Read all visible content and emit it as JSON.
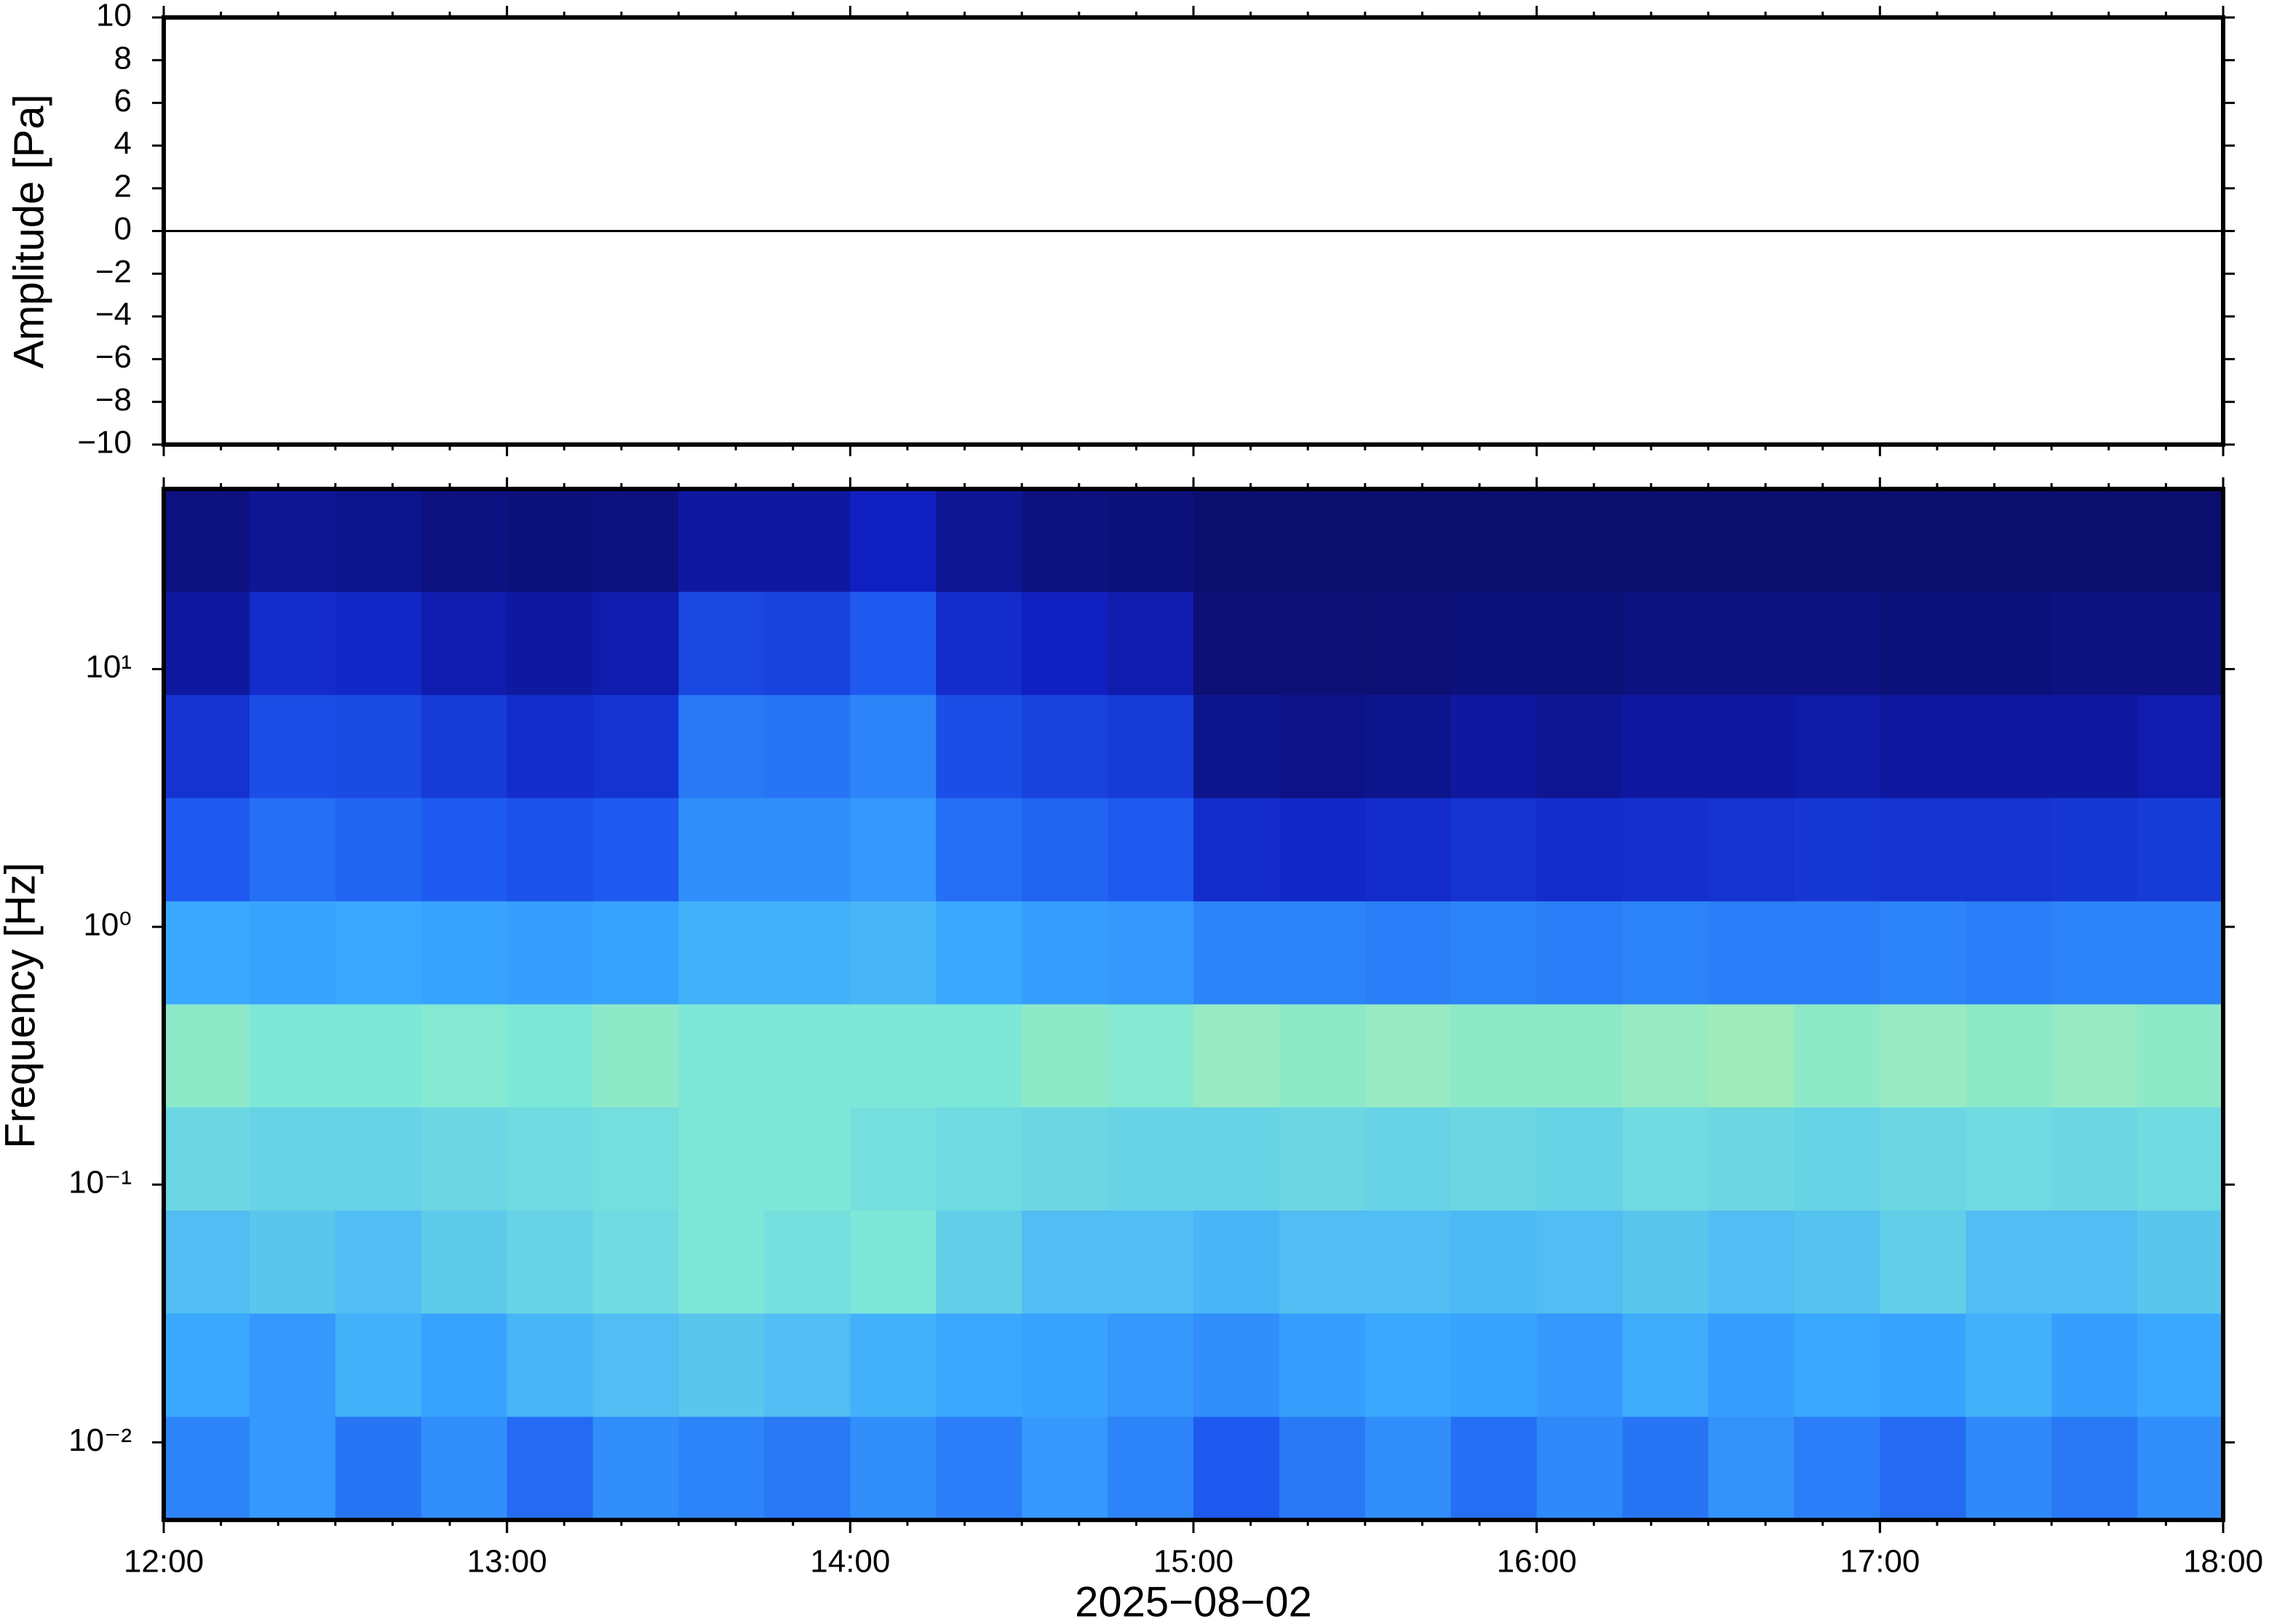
{
  "chart_data": [
    {
      "type": "line",
      "ylabel": "Amplitude [Pa]",
      "x": [
        12,
        13,
        14,
        15,
        16,
        17,
        18
      ],
      "values": [
        0,
        0,
        0,
        0,
        0,
        0,
        0
      ],
      "color": "#000000",
      "xlim": [
        12,
        18
      ],
      "ylim": [
        -10,
        10
      ],
      "yticks": [
        {
          "value": -10,
          "label": "−10"
        },
        {
          "value": -8,
          "label": "−8"
        },
        {
          "value": -6,
          "label": "−6"
        },
        {
          "value": -4,
          "label": "−4"
        },
        {
          "value": -2,
          "label": "−2"
        },
        0,
        2,
        4,
        6,
        8,
        10
      ]
    },
    {
      "type": "heatmap",
      "ylabel": "Frequency [Hz]",
      "xlabel": "2025−08−02",
      "xlim": [
        12,
        18
      ],
      "xticks": [
        {
          "value": 12,
          "label": "12:00"
        },
        {
          "value": 13,
          "label": "13:00"
        },
        {
          "value": 14,
          "label": "14:00"
        },
        {
          "value": 15,
          "label": "15:00"
        },
        {
          "value": 16,
          "label": "16:00"
        },
        {
          "value": 17,
          "label": "17:00"
        },
        {
          "value": 18,
          "label": "18:00"
        }
      ],
      "yscale": "log",
      "ylim": [
        0.005,
        50
      ],
      "yticks": [
        {
          "value": 0.01,
          "label": "10⁻²"
        },
        {
          "value": 0.1,
          "label": "10⁻¹"
        },
        {
          "value": 1,
          "label": "10⁰"
        },
        {
          "value": 10,
          "label": "10¹"
        }
      ],
      "time_bins": [
        12,
        12.25,
        12.5,
        12.75,
        13,
        13.25,
        13.5,
        13.75,
        14,
        14.25,
        14.5,
        14.75,
        15,
        15.25,
        15.5,
        15.75,
        16,
        16.25,
        16.5,
        16.75,
        17,
        17.25,
        17.5,
        17.75,
        18
      ],
      "freq_bins": [
        0.005,
        0.0126,
        0.0317,
        0.0796,
        0.2,
        0.502,
        1.26,
        3.17,
        7.96,
        20,
        50
      ],
      "z": [
        [
          0.38,
          0.42,
          0.35,
          0.4,
          0.33,
          0.4,
          0.38,
          0.36,
          0.4,
          0.37,
          0.42,
          0.38,
          0.3,
          0.36,
          0.4,
          0.34,
          0.39,
          0.35,
          0.41,
          0.37,
          0.33,
          0.39,
          0.36,
          0.4
        ],
        [
          0.45,
          0.42,
          0.47,
          0.44,
          0.48,
          0.5,
          0.52,
          0.5,
          0.47,
          0.45,
          0.44,
          0.42,
          0.4,
          0.43,
          0.45,
          0.44,
          0.42,
          0.46,
          0.43,
          0.45,
          0.44,
          0.47,
          0.43,
          0.45
        ],
        [
          0.5,
          0.52,
          0.5,
          0.53,
          0.55,
          0.57,
          0.6,
          0.58,
          0.6,
          0.54,
          0.5,
          0.5,
          0.48,
          0.5,
          0.5,
          0.49,
          0.5,
          0.52,
          0.5,
          0.51,
          0.54,
          0.5,
          0.5,
          0.52
        ],
        [
          0.56,
          0.55,
          0.55,
          0.56,
          0.57,
          0.58,
          0.6,
          0.6,
          0.58,
          0.57,
          0.56,
          0.55,
          0.55,
          0.56,
          0.55,
          0.56,
          0.55,
          0.57,
          0.56,
          0.55,
          0.56,
          0.57,
          0.56,
          0.57
        ],
        [
          0.62,
          0.6,
          0.6,
          0.61,
          0.6,
          0.62,
          0.6,
          0.6,
          0.6,
          0.6,
          0.62,
          0.61,
          0.63,
          0.62,
          0.63,
          0.62,
          0.62,
          0.63,
          0.64,
          0.62,
          0.63,
          0.62,
          0.63,
          0.62
        ],
        [
          0.45,
          0.44,
          0.45,
          0.44,
          0.43,
          0.44,
          0.47,
          0.47,
          0.48,
          0.45,
          0.43,
          0.42,
          0.38,
          0.38,
          0.37,
          0.38,
          0.37,
          0.38,
          0.37,
          0.37,
          0.38,
          0.37,
          0.38,
          0.38
        ],
        [
          0.3,
          0.34,
          0.32,
          0.3,
          0.28,
          0.3,
          0.4,
          0.4,
          0.42,
          0.34,
          0.32,
          0.3,
          0.18,
          0.17,
          0.18,
          0.2,
          0.18,
          0.19,
          0.2,
          0.21,
          0.2,
          0.2,
          0.21,
          0.22
        ],
        [
          0.2,
          0.27,
          0.26,
          0.22,
          0.18,
          0.2,
          0.36,
          0.35,
          0.38,
          0.27,
          0.24,
          0.22,
          0.07,
          0.06,
          0.07,
          0.1,
          0.08,
          0.1,
          0.1,
          0.11,
          0.1,
          0.1,
          0.1,
          0.12
        ],
        [
          0.1,
          0.18,
          0.17,
          0.12,
          0.1,
          0.12,
          0.25,
          0.24,
          0.3,
          0.18,
          0.15,
          0.12,
          0.03,
          0.03,
          0.03,
          0.04,
          0.04,
          0.05,
          0.05,
          0.05,
          0.04,
          0.04,
          0.05,
          0.05
        ],
        [
          0.05,
          0.08,
          0.07,
          0.05,
          0.04,
          0.05,
          0.1,
          0.1,
          0.15,
          0.08,
          0.05,
          0.04,
          0.02,
          0.02,
          0.02,
          0.02,
          0.02,
          0.02,
          0.02,
          0.02,
          0.02,
          0.02,
          0.02,
          0.02
        ]
      ]
    }
  ]
}
